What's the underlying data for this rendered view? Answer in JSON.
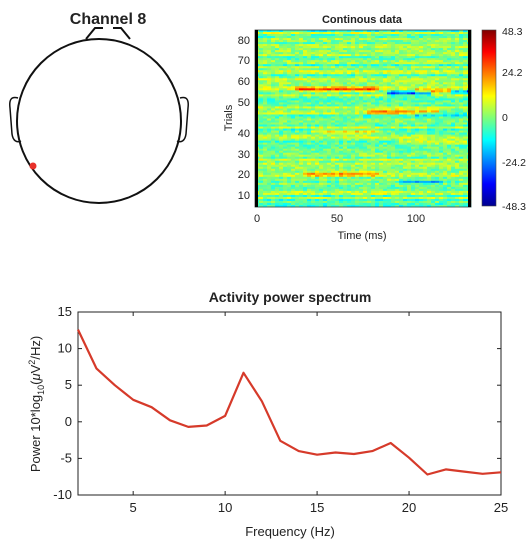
{
  "head_plot": {
    "title": "Channel 8",
    "electrode_color": "#e8312a"
  },
  "continuous_plot": {
    "title": "Continous data",
    "xlabel": "Time (ms)",
    "ylabel": "Trials",
    "xticks": [
      "0",
      "50",
      "100"
    ],
    "yticks": [
      "10",
      "20",
      "30",
      "40",
      "50",
      "60",
      "70",
      "80"
    ],
    "colorbar_ticks": [
      "48.3",
      "24.2",
      "0",
      "-24.2",
      "-48.3"
    ]
  },
  "chart_data": [
    {
      "type": "heatmap",
      "title": "Continous data",
      "xlabel": "Time (ms)",
      "ylabel": "Trials",
      "xlim": [
        0,
        135
      ],
      "ylim": [
        1,
        88
      ],
      "clim": [
        -48.3,
        48.3
      ],
      "colormap": "jet"
    },
    {
      "type": "line",
      "title": "Activity power spectrum",
      "xlabel": "Frequency (Hz)",
      "ylabel_parts": [
        "Power 10*log",
        "10",
        "(",
        "μ",
        "V",
        "2",
        "/Hz)"
      ],
      "xlim": [
        2,
        25
      ],
      "ylim": [
        -10,
        15
      ],
      "xticks": [
        5,
        10,
        15,
        20,
        25
      ],
      "yticks": [
        15,
        10,
        5,
        0,
        -5,
        -10
      ],
      "series": [
        {
          "color": "#d63a2a",
          "x": [
            2,
            3,
            4,
            5,
            6,
            7,
            8,
            9,
            10,
            11,
            12,
            13,
            14,
            15,
            16,
            17,
            18,
            19,
            20,
            21,
            22,
            23,
            24,
            25
          ],
          "values": [
            12.6,
            7.3,
            5.0,
            3.0,
            2.0,
            0.2,
            -0.7,
            -0.5,
            0.8,
            6.7,
            2.8,
            -2.6,
            -4.0,
            -4.5,
            -4.2,
            -4.4,
            -4.0,
            -2.9,
            -4.9,
            -7.2,
            -6.5,
            -6.8,
            -7.1,
            -6.9
          ]
        }
      ]
    }
  ]
}
